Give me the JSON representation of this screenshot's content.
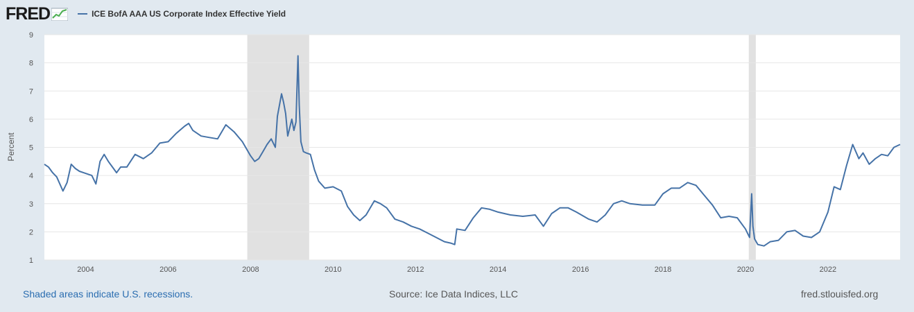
{
  "header": {
    "logo_text": "FRED",
    "legend_label": "ICE BofA AAA US Corporate Index Effective Yield"
  },
  "footer": {
    "recession_note": "Shaded areas indicate U.S. recessions.",
    "source": "Source: Ice Data Indices, LLC",
    "site": "fred.stlouisfed.org"
  },
  "colors": {
    "line": "#4572a7",
    "recession": "#e1e1e1",
    "background": "#e1e9f0",
    "plot": "#ffffff",
    "grid": "#e6e6e6"
  },
  "chart_data": {
    "type": "line",
    "ylabel": "Percent",
    "xlim": [
      2003.0,
      2023.75
    ],
    "ylim": [
      1,
      9
    ],
    "yticks": [
      1,
      2,
      3,
      4,
      5,
      6,
      7,
      8,
      9
    ],
    "xticks": [
      2004,
      2006,
      2008,
      2010,
      2012,
      2014,
      2016,
      2018,
      2020,
      2022
    ],
    "grid": "horizontal",
    "recessions": [
      [
        2007.92,
        2009.42
      ],
      [
        2020.08,
        2020.25
      ]
    ],
    "series": [
      {
        "name": "ICE BofA AAA US Corporate Index Effective Yield",
        "x": [
          2003.0,
          2003.1,
          2003.2,
          2003.3,
          2003.45,
          2003.55,
          2003.65,
          2003.75,
          2003.85,
          2003.95,
          2004.05,
          2004.15,
          2004.25,
          2004.35,
          2004.45,
          2004.55,
          2004.65,
          2004.75,
          2004.85,
          2005.0,
          2005.2,
          2005.4,
          2005.6,
          2005.8,
          2006.0,
          2006.2,
          2006.4,
          2006.5,
          2006.6,
          2006.8,
          2007.0,
          2007.2,
          2007.4,
          2007.6,
          2007.8,
          2007.92,
          2008.0,
          2008.1,
          2008.2,
          2008.3,
          2008.4,
          2008.5,
          2008.6,
          2008.65,
          2008.75,
          2008.8,
          2008.85,
          2008.9,
          2009.0,
          2009.05,
          2009.1,
          2009.15,
          2009.18,
          2009.22,
          2009.28,
          2009.35,
          2009.45,
          2009.55,
          2009.65,
          2009.8,
          2010.0,
          2010.2,
          2010.35,
          2010.5,
          2010.65,
          2010.8,
          2011.0,
          2011.15,
          2011.3,
          2011.5,
          2011.7,
          2011.9,
          2012.1,
          2012.3,
          2012.5,
          2012.7,
          2012.85,
          2012.95,
          2013.0,
          2013.2,
          2013.4,
          2013.6,
          2013.8,
          2014.0,
          2014.3,
          2014.6,
          2014.9,
          2015.1,
          2015.3,
          2015.5,
          2015.7,
          2015.9,
          2016.2,
          2016.4,
          2016.6,
          2016.8,
          2017.0,
          2017.2,
          2017.5,
          2017.8,
          2018.0,
          2018.2,
          2018.4,
          2018.6,
          2018.8,
          2019.0,
          2019.2,
          2019.4,
          2019.6,
          2019.8,
          2020.0,
          2020.1,
          2020.15,
          2020.18,
          2020.22,
          2020.3,
          2020.45,
          2020.6,
          2020.8,
          2021.0,
          2021.2,
          2021.4,
          2021.6,
          2021.8,
          2022.0,
          2022.15,
          2022.3,
          2022.45,
          2022.6,
          2022.75,
          2022.85,
          2023.0,
          2023.15,
          2023.3,
          2023.45,
          2023.6,
          2023.75
        ],
        "values": [
          4.4,
          4.3,
          4.1,
          3.95,
          3.45,
          3.75,
          4.4,
          4.25,
          4.15,
          4.1,
          4.05,
          4.0,
          3.7,
          4.5,
          4.75,
          4.5,
          4.3,
          4.1,
          4.3,
          4.3,
          4.75,
          4.6,
          4.8,
          5.15,
          5.2,
          5.5,
          5.75,
          5.85,
          5.6,
          5.4,
          5.35,
          5.3,
          5.8,
          5.55,
          5.2,
          4.9,
          4.7,
          4.5,
          4.6,
          4.85,
          5.1,
          5.3,
          5.0,
          6.1,
          6.9,
          6.6,
          6.2,
          5.4,
          6.0,
          5.6,
          5.9,
          8.25,
          6.5,
          5.2,
          4.85,
          4.8,
          4.75,
          4.2,
          3.8,
          3.55,
          3.6,
          3.45,
          2.9,
          2.6,
          2.4,
          2.6,
          3.1,
          3.0,
          2.85,
          2.45,
          2.35,
          2.2,
          2.1,
          1.95,
          1.8,
          1.65,
          1.6,
          1.55,
          2.1,
          2.05,
          2.5,
          2.85,
          2.8,
          2.7,
          2.6,
          2.55,
          2.6,
          2.2,
          2.65,
          2.85,
          2.85,
          2.7,
          2.45,
          2.35,
          2.6,
          3.0,
          3.1,
          3.0,
          2.95,
          2.95,
          3.35,
          3.55,
          3.55,
          3.75,
          3.65,
          3.3,
          2.95,
          2.5,
          2.55,
          2.5,
          2.1,
          1.8,
          3.35,
          2.2,
          1.75,
          1.55,
          1.5,
          1.65,
          1.7,
          2.0,
          2.05,
          1.85,
          1.8,
          2.0,
          2.7,
          3.6,
          3.5,
          4.35,
          5.1,
          4.6,
          4.8,
          4.4,
          4.6,
          4.75,
          4.7,
          5.0,
          5.1
        ]
      }
    ]
  }
}
